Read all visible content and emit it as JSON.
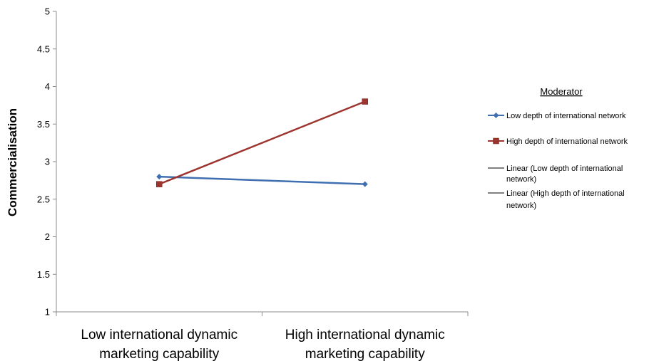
{
  "chart_data": {
    "type": "line",
    "title": "",
    "xlabel": "",
    "ylabel": "Commercialisation",
    "ylim": [
      1,
      5
    ],
    "yticks": [
      "1",
      "1.5",
      "2",
      "2.5",
      "3",
      "3.5",
      "4",
      "4.5",
      "5"
    ],
    "categories": [
      [
        "Low international dynamic",
        "marketing capability"
      ],
      [
        "High international dynamic",
        "marketing capability"
      ]
    ],
    "series": [
      {
        "name": "Low depth of international network",
        "values": [
          2.8,
          2.7
        ],
        "color": "#3f6fb0",
        "marker": "diamond"
      },
      {
        "name": "High depth of international network",
        "values": [
          2.7,
          3.8
        ],
        "color": "#9c3530",
        "marker": "square"
      }
    ],
    "trendlines": [
      {
        "name": [
          "Linear (Low depth of international",
          "network)"
        ],
        "color": "#000000"
      },
      {
        "name": [
          "Linear (High depth of international",
          "network)"
        ],
        "color": "#000000"
      }
    ],
    "grid": false,
    "legend": {
      "title": "Moderator",
      "placement": "right"
    }
  }
}
